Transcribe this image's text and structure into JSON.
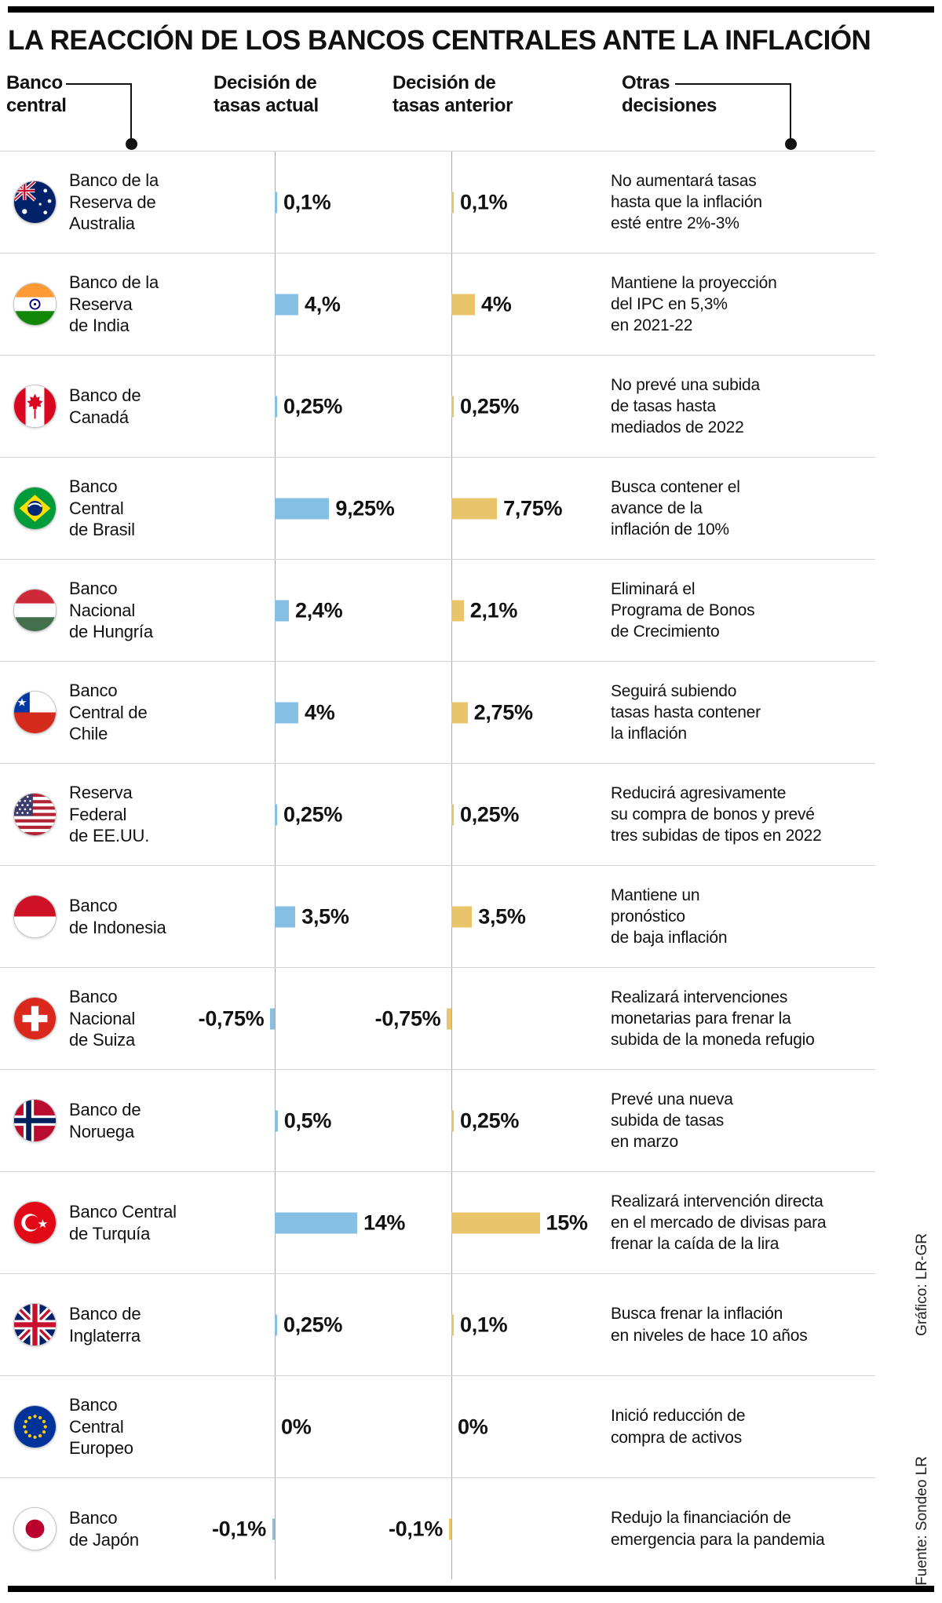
{
  "title": "LA REACCIÓN DE LOS BANCOS CENTRALES ANTE LA INFLACIÓN",
  "columns": {
    "bank": "Banco\ncentral",
    "current": "Decisión de\ntasas actual",
    "previous": "Decisión de\ntasas anterior",
    "other": "Otras\ndecisiones"
  },
  "colors": {
    "bar-current": "#85c0e4",
    "bar-previous": "#e9c46a"
  },
  "rows": [
    {
      "flag": "australia",
      "bank": "Banco de la\nReserva de\nAustralia",
      "current_label": "0,1%",
      "current_value": 0.1,
      "previous_label": "0,1%",
      "previous_value": 0.1,
      "other": "No aumentará tasas\nhasta que la inflación\nesté entre 2%-3%"
    },
    {
      "flag": "india",
      "bank": "Banco de la\nReserva\nde India",
      "current_label": "4,%",
      "current_value": 4,
      "previous_label": "4%",
      "previous_value": 4,
      "other": "Mantiene la proyección\ndel IPC en 5,3%\nen 2021-22"
    },
    {
      "flag": "canada",
      "bank": "Banco de\nCanadá",
      "current_label": "0,25%",
      "current_value": 0.25,
      "previous_label": "0,25%",
      "previous_value": 0.25,
      "other": "No prevé una subida\nde tasas hasta\nmediados de 2022"
    },
    {
      "flag": "brazil",
      "bank": "Banco\nCentral\nde Brasil",
      "current_label": "9,25%",
      "current_value": 9.25,
      "previous_label": "7,75%",
      "previous_value": 7.75,
      "other": "Busca contener el\navance de la\ninflación de 10%"
    },
    {
      "flag": "hungary",
      "bank": "Banco\nNacional\nde Hungría",
      "current_label": "2,4%",
      "current_value": 2.4,
      "previous_label": "2,1%",
      "previous_value": 2.1,
      "other": "Eliminará el\nPrograma de Bonos\nde Crecimiento"
    },
    {
      "flag": "chile",
      "bank": "Banco\nCentral de\nChile",
      "current_label": "4%",
      "current_value": 4,
      "previous_label": "2,75%",
      "previous_value": 2.75,
      "other": "Seguirá subiendo\ntasas hasta contener\nla inflación"
    },
    {
      "flag": "usa",
      "bank": "Reserva\nFederal\nde EE.UU.",
      "current_label": "0,25%",
      "current_value": 0.25,
      "previous_label": "0,25%",
      "previous_value": 0.25,
      "other": "Reducirá agresivamente\nsu compra de bonos y prevé\ntres subidas de tipos en 2022"
    },
    {
      "flag": "indonesia",
      "bank": "Banco\nde Indonesia",
      "current_label": "3,5%",
      "current_value": 3.5,
      "previous_label": "3,5%",
      "previous_value": 3.5,
      "other": "Mantiene un\npronóstico\nde baja inflación"
    },
    {
      "flag": "switzerland",
      "bank": "Banco\nNacional\nde Suiza",
      "current_label": "-0,75%",
      "current_value": -0.75,
      "previous_label": "-0,75%",
      "previous_value": -0.75,
      "other": "Realizará intervenciones\nmonetarias para frenar la\nsubida de la moneda refugio"
    },
    {
      "flag": "norway",
      "bank": "Banco de\nNoruega",
      "current_label": "0,5%",
      "current_value": 0.5,
      "previous_label": "0,25%",
      "previous_value": 0.25,
      "other": "Prevé una nueva\nsubida de tasas\nen marzo"
    },
    {
      "flag": "turkey",
      "bank": "Banco Central\nde Turquía",
      "current_label": "14%",
      "current_value": 14,
      "previous_label": "15%",
      "previous_value": 15,
      "other": "Realizará intervención directa\nen el mercado de divisas para\nfrenar la caída de la lira"
    },
    {
      "flag": "uk",
      "bank": "Banco de\nInglaterra",
      "current_label": "0,25%",
      "current_value": 0.25,
      "previous_label": "0,1%",
      "previous_value": 0.1,
      "other": "Busca frenar la inflación\nen niveles de hace 10 años"
    },
    {
      "flag": "eu",
      "bank": "Banco\nCentral\nEuropeo",
      "current_label": "0%",
      "current_value": 0,
      "previous_label": "0%",
      "previous_value": 0,
      "other": "Inició reducción de\ncompra de activos"
    },
    {
      "flag": "japan",
      "bank": "Banco\nde Japón",
      "current_label": "-0,1%",
      "current_value": -0.1,
      "previous_label": "-0,1%",
      "previous_value": -0.1,
      "other": "Redujo la financiación de\nemergencia para la pandemia"
    }
  ],
  "credits": {
    "graphic": "Gráfico: LR-GR",
    "source": "Fuente: Sondeo LR"
  },
  "chart_data": {
    "type": "bar",
    "orientation": "horizontal",
    "title": "LA REACCIÓN DE LOS BANCOS CENTRALES ANTE LA INFLACIÓN",
    "unit": "%",
    "x_range": [
      -0.75,
      15
    ],
    "grid": false,
    "legend_position": "column-headers",
    "categories": [
      "Banco de la Reserva de Australia",
      "Banco de la Reserva de India",
      "Banco de Canadá",
      "Banco Central de Brasil",
      "Banco Nacional de Hungría",
      "Banco Central de Chile",
      "Reserva Federal de EE.UU.",
      "Banco de Indonesia",
      "Banco Nacional de Suiza",
      "Banco de Noruega",
      "Banco Central de Turquía",
      "Banco de Inglaterra",
      "Banco Central Europeo",
      "Banco de Japón"
    ],
    "series": [
      {
        "name": "Decisión de tasas actual",
        "color": "#85c0e4",
        "values": [
          0.1,
          4,
          0.25,
          9.25,
          2.4,
          4,
          0.25,
          3.5,
          -0.75,
          0.5,
          14,
          0.25,
          0,
          -0.1
        ]
      },
      {
        "name": "Decisión de tasas anterior",
        "color": "#e9c46a",
        "values": [
          0.1,
          4,
          0.25,
          7.75,
          2.1,
          2.75,
          0.25,
          3.5,
          -0.75,
          0.25,
          15,
          0.1,
          0,
          -0.1
        ]
      }
    ],
    "annotations": [
      "No aumentará tasas hasta que la inflación esté entre 2%-3%",
      "Mantiene la proyección del IPC en 5,3% en 2021-22",
      "No prevé una subida de tasas hasta mediados de 2022",
      "Busca contener el avance de la inflación de 10%",
      "Eliminará el Programa de Bonos de Crecimiento",
      "Seguirá subiendo tasas hasta contener la inflación",
      "Reducirá agresivamente su compra de bonos y prevé tres subidas de tipos en 2022",
      "Mantiene un pronóstico de baja inflación",
      "Realizará intervenciones monetarias para frenar la subida de la moneda refugio",
      "Prevé una nueva subida de tasas en marzo",
      "Realizará intervención directa en el mercado de divisas para frenar la caída de la lira",
      "Busca frenar la inflación en niveles de hace 10 años",
      "Inició reducción de compra de activos",
      "Redujo la financiación de emergencia para la pandemia"
    ],
    "source": "Fuente: Sondeo LR"
  }
}
